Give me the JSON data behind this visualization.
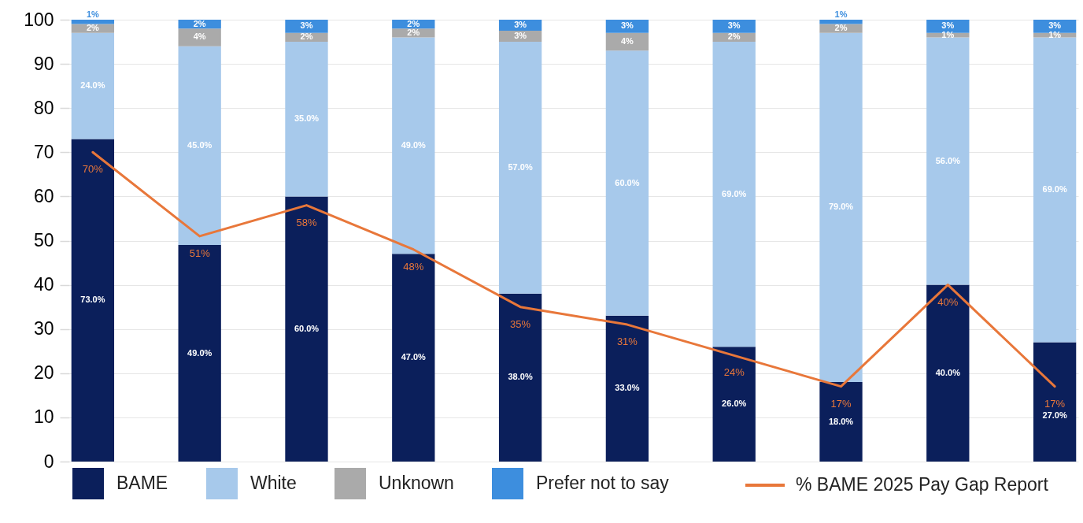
{
  "chart_data": {
    "type": "bar",
    "stacked": true,
    "categories": [
      null,
      null,
      null,
      null,
      null,
      null,
      null,
      null,
      null,
      null
    ],
    "ylim": [
      0,
      100
    ],
    "yticks": [
      0,
      10,
      20,
      30,
      40,
      50,
      60,
      70,
      80,
      90,
      100
    ],
    "grid": "y",
    "legend": "bottom",
    "tick_labels": "y",
    "line_style": "solid",
    "series": [
      {
        "name": "BAME",
        "color": "#0b1f5b",
        "values": [
          73,
          49,
          60,
          47,
          38,
          33,
          26,
          18,
          40,
          27
        ],
        "value_labels": [
          "73.0%",
          "49.0%",
          "60.0%",
          "47.0%",
          "38.0%",
          "33.0%",
          "26.0%",
          "18.0%",
          "40.0%",
          "27.0%"
        ]
      },
      {
        "name": "White",
        "color": "#a7c9eb",
        "values": [
          24,
          45,
          35,
          49,
          57,
          60,
          69,
          79,
          56,
          69
        ],
        "value_labels": [
          "24.0%",
          "45.0%",
          "35.0%",
          "49.0%",
          "57.0%",
          "60.0%",
          "69.0%",
          "79.0%",
          "56.0%",
          "69.0%"
        ]
      },
      {
        "name": "Unknown",
        "color": "#aaaaaa",
        "values": [
          2,
          4,
          2,
          2,
          2.5,
          4,
          2,
          2,
          1,
          1
        ],
        "value_labels": [
          "2%",
          "4%",
          "2%",
          "2%",
          "3%",
          "4%",
          "2%",
          "2%",
          "1%",
          "1%"
        ]
      },
      {
        "name": "Prefer not to say",
        "color": "#3d8ede",
        "values": [
          1,
          2,
          3,
          2,
          2.5,
          3,
          3,
          1,
          3,
          3
        ],
        "value_labels": [
          "1%",
          "2%",
          "3%",
          "2%",
          "3%",
          "3%",
          "3%",
          "1%",
          "3%",
          "3%"
        ]
      },
      {
        "name": "% BAME 2025 Pay Gap Report",
        "type": "line",
        "color": "#e8773a",
        "values": [
          70,
          51,
          58,
          48,
          35,
          31,
          24,
          17,
          40,
          17
        ],
        "value_labels": [
          "70%",
          "51%",
          "58%",
          "48%",
          "35%",
          "31%",
          "24%",
          "17%",
          "40%",
          "17%"
        ]
      }
    ]
  }
}
